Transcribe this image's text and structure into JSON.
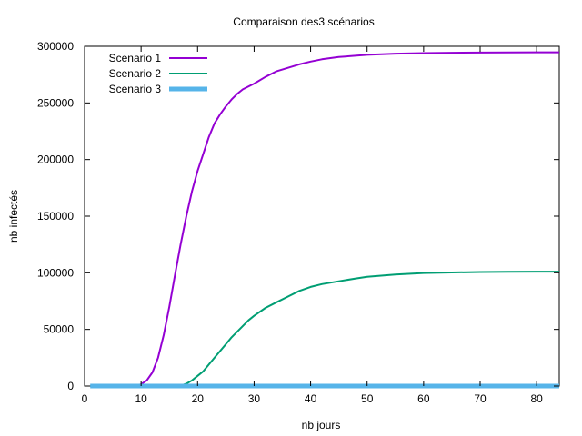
{
  "chart_data": {
    "type": "line",
    "title": "Comparaison des3 scénarios",
    "xlabel": "nb jours",
    "ylabel": "nb infectés",
    "xlim": [
      0,
      84
    ],
    "ylim": [
      0,
      300000
    ],
    "xticks": [
      0,
      10,
      20,
      30,
      40,
      50,
      60,
      70,
      80
    ],
    "yticks": [
      0,
      50000,
      100000,
      150000,
      200000,
      250000,
      300000
    ],
    "grid": false,
    "legend_position": "top-left",
    "series": [
      {
        "name": "Scenario 1",
        "color": "#9400d3",
        "points": [
          [
            1,
            0
          ],
          [
            8,
            0
          ],
          [
            9,
            200
          ],
          [
            10,
            1500
          ],
          [
            11,
            5000
          ],
          [
            12,
            12000
          ],
          [
            13,
            25000
          ],
          [
            14,
            45000
          ],
          [
            15,
            70000
          ],
          [
            16,
            98000
          ],
          [
            17,
            125000
          ],
          [
            18,
            150000
          ],
          [
            19,
            172000
          ],
          [
            20,
            190000
          ],
          [
            21,
            205000
          ],
          [
            22,
            220000
          ],
          [
            23,
            232000
          ],
          [
            24,
            240000
          ],
          [
            25,
            247000
          ],
          [
            26,
            253000
          ],
          [
            27,
            258000
          ],
          [
            28,
            262000
          ],
          [
            30,
            267000
          ],
          [
            32,
            273000
          ],
          [
            34,
            278000
          ],
          [
            36,
            281000
          ],
          [
            38,
            284000
          ],
          [
            40,
            286500
          ],
          [
            42,
            288500
          ],
          [
            45,
            290500
          ],
          [
            50,
            292500
          ],
          [
            55,
            293500
          ],
          [
            60,
            294000
          ],
          [
            65,
            294300
          ],
          [
            70,
            294500
          ],
          [
            75,
            294600
          ],
          [
            80,
            294700
          ],
          [
            84,
            294700
          ]
        ]
      },
      {
        "name": "Scenario 2",
        "color": "#009e73",
        "points": [
          [
            1,
            0
          ],
          [
            16,
            0
          ],
          [
            17,
            500
          ],
          [
            18,
            2000
          ],
          [
            19,
            5000
          ],
          [
            20,
            9000
          ],
          [
            21,
            13000
          ],
          [
            22,
            19000
          ],
          [
            23,
            25000
          ],
          [
            24,
            31000
          ],
          [
            25,
            37000
          ],
          [
            26,
            43000
          ],
          [
            27,
            48000
          ],
          [
            28,
            53000
          ],
          [
            29,
            58000
          ],
          [
            30,
            62000
          ],
          [
            32,
            69000
          ],
          [
            34,
            74000
          ],
          [
            36,
            79000
          ],
          [
            38,
            84000
          ],
          [
            40,
            87500
          ],
          [
            42,
            90000
          ],
          [
            45,
            92500
          ],
          [
            48,
            95000
          ],
          [
            50,
            96500
          ],
          [
            55,
            98500
          ],
          [
            60,
            99800
          ],
          [
            65,
            100300
          ],
          [
            70,
            100700
          ],
          [
            75,
            100900
          ],
          [
            80,
            101000
          ],
          [
            84,
            101000
          ]
        ]
      },
      {
        "name": "Scenario 3",
        "color": "#56b4e9",
        "points": [
          [
            1,
            0
          ],
          [
            84,
            0
          ]
        ]
      }
    ]
  }
}
